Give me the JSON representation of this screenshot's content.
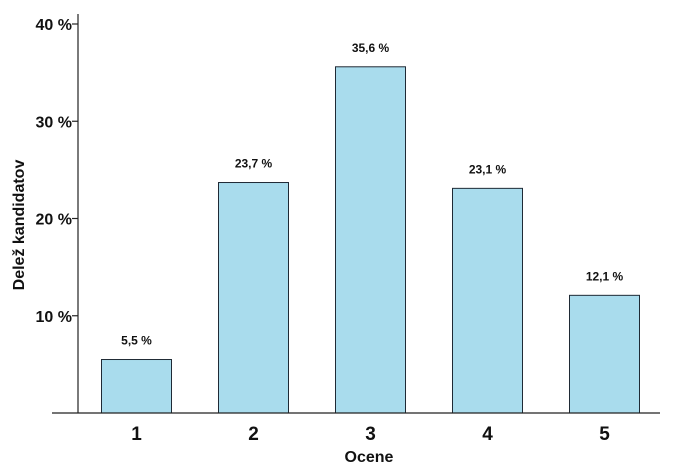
{
  "chart_data": {
    "type": "bar",
    "categories": [
      "1",
      "2",
      "3",
      "4",
      "5"
    ],
    "values": [
      5.5,
      23.7,
      35.6,
      23.1,
      12.1
    ],
    "data_labels": [
      "5,5 %",
      "23,7 %",
      "35,6 %",
      "23,1 %",
      "12,1 %"
    ],
    "title": "",
    "xlabel": "Ocene",
    "ylabel": "Delež kandidatov",
    "ylim": [
      0,
      40
    ],
    "yticks": [
      {
        "value": 10,
        "label": "10 %"
      },
      {
        "value": 20,
        "label": "20 %"
      },
      {
        "value": 30,
        "label": "30 %"
      },
      {
        "value": 40,
        "label": "40 %"
      }
    ],
    "grid": false,
    "legend": "none",
    "colors": {
      "bar_fill": "#a9dced",
      "bar_stroke": "#1f2a35",
      "axis": "#222222",
      "text": "#111111"
    }
  }
}
